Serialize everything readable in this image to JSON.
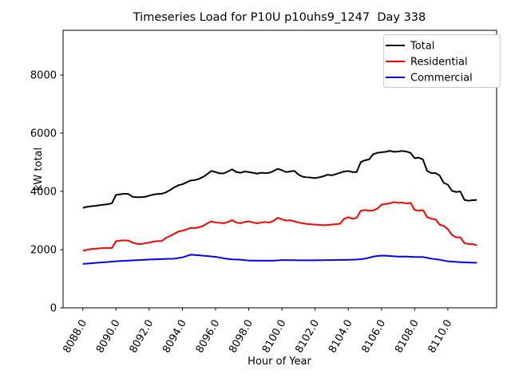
{
  "title": "Timeseries Load for P10U p10uhs9_1247  Day 338",
  "colors": {
    "background": "#ffffff",
    "axes": "#000000",
    "legend_border": "#cccccc",
    "total": "#000000",
    "residential": "#ff0000",
    "commercial": "#0000ff"
  },
  "legend": {
    "position": "upper right",
    "entries": [
      "Total",
      "Residential",
      "Commercial"
    ]
  },
  "chart_data": {
    "type": "line",
    "title": "Timeseries Load for P10U p10uhs9_1247  Day 338",
    "xlabel": "Hour of Year",
    "ylabel": "kW total",
    "xlim": [
      8086.81,
      8112.94
    ],
    "ylim": [
      0,
      9535
    ],
    "x_ticks": [
      8088,
      8090,
      8092,
      8094,
      8096,
      8098,
      8100,
      8102,
      8104,
      8106,
      8108,
      8110
    ],
    "x_tick_rotation": 60,
    "y_ticks": [
      0,
      2000,
      4000,
      6000,
      8000
    ],
    "grid": false,
    "legend_position": "upper right",
    "x": [
      8088.0,
      8088.25,
      8088.5,
      8088.75,
      8089.0,
      8089.25,
      8089.5,
      8089.75,
      8090.0,
      8090.25,
      8090.5,
      8090.75,
      8091.0,
      8091.25,
      8091.5,
      8091.75,
      8092.0,
      8092.25,
      8092.5,
      8092.75,
      8093.0,
      8093.25,
      8093.5,
      8093.75,
      8094.0,
      8094.25,
      8094.5,
      8094.75,
      8095.0,
      8095.25,
      8095.5,
      8095.75,
      8096.0,
      8096.25,
      8096.5,
      8096.75,
      8097.0,
      8097.25,
      8097.5,
      8097.75,
      8098.0,
      8098.25,
      8098.5,
      8098.75,
      8099.0,
      8099.25,
      8099.5,
      8099.75,
      8100.0,
      8100.25,
      8100.5,
      8100.75,
      8101.0,
      8101.25,
      8101.5,
      8101.75,
      8102.0,
      8102.25,
      8102.5,
      8102.75,
      8103.0,
      8103.25,
      8103.5,
      8103.75,
      8104.0,
      8104.25,
      8104.5,
      8104.75,
      8105.0,
      8105.25,
      8105.5,
      8105.75,
      8106.0,
      8106.25,
      8106.5,
      8106.75,
      8107.0,
      8107.25,
      8107.5,
      8107.75,
      8108.0,
      8108.25,
      8108.5,
      8108.75,
      8109.0,
      8109.25,
      8109.5,
      8109.75,
      8110.0,
      8110.25,
      8110.5,
      8110.75,
      8111.0,
      8111.25,
      8111.5,
      8111.75
    ],
    "series": [
      {
        "name": "Total",
        "color": "#000000",
        "values": [
          3435,
          3470,
          3490,
          3505,
          3525,
          3545,
          3560,
          3590,
          3880,
          3900,
          3920,
          3910,
          3815,
          3800,
          3800,
          3815,
          3855,
          3890,
          3910,
          3920,
          3965,
          4045,
          4135,
          4210,
          4245,
          4310,
          4375,
          4390,
          4430,
          4500,
          4595,
          4705,
          4665,
          4620,
          4620,
          4685,
          4760,
          4665,
          4640,
          4685,
          4665,
          4640,
          4610,
          4640,
          4630,
          4640,
          4705,
          4775,
          4730,
          4665,
          4685,
          4705,
          4575,
          4505,
          4485,
          4475,
          4455,
          4485,
          4520,
          4575,
          4550,
          4595,
          4640,
          4685,
          4700,
          4665,
          4665,
          5005,
          5070,
          5100,
          5280,
          5325,
          5345,
          5360,
          5395,
          5360,
          5370,
          5390,
          5370,
          5325,
          5140,
          5160,
          5095,
          4705,
          4630,
          4630,
          4550,
          4295,
          4230,
          4020,
          3980,
          4000,
          3710,
          3680,
          3700,
          3710
        ]
      },
      {
        "name": "Residential",
        "color": "#ff0000",
        "values": [
          1965,
          1990,
          2020,
          2030,
          2045,
          2055,
          2055,
          2055,
          2290,
          2310,
          2320,
          2310,
          2240,
          2200,
          2190,
          2220,
          2240,
          2275,
          2295,
          2295,
          2400,
          2470,
          2540,
          2620,
          2650,
          2695,
          2750,
          2740,
          2770,
          2815,
          2905,
          2970,
          2930,
          2920,
          2905,
          2950,
          3015,
          2930,
          2905,
          2950,
          2970,
          2930,
          2905,
          2930,
          2950,
          2930,
          2995,
          3095,
          3040,
          3000,
          3010,
          2970,
          2930,
          2905,
          2885,
          2870,
          2860,
          2850,
          2840,
          2845,
          2860,
          2875,
          2890,
          3060,
          3115,
          3060,
          3090,
          3335,
          3360,
          3335,
          3345,
          3410,
          3545,
          3570,
          3590,
          3635,
          3605,
          3615,
          3590,
          3605,
          3360,
          3335,
          3360,
          3115,
          3060,
          3040,
          2860,
          2810,
          2700,
          2500,
          2420,
          2420,
          2220,
          2190,
          2190,
          2150
        ]
      },
      {
        "name": "Commercial",
        "color": "#0000ff",
        "values": [
          1510,
          1520,
          1530,
          1545,
          1555,
          1565,
          1575,
          1590,
          1600,
          1608,
          1615,
          1622,
          1630,
          1638,
          1645,
          1652,
          1660,
          1665,
          1670,
          1675,
          1680,
          1685,
          1690,
          1710,
          1735,
          1780,
          1825,
          1815,
          1805,
          1790,
          1780,
          1765,
          1755,
          1725,
          1700,
          1680,
          1665,
          1660,
          1655,
          1640,
          1625,
          1622,
          1620,
          1620,
          1620,
          1620,
          1620,
          1630,
          1640,
          1640,
          1638,
          1636,
          1635,
          1635,
          1635,
          1635,
          1635,
          1636,
          1638,
          1640,
          1642,
          1644,
          1646,
          1648,
          1650,
          1655,
          1660,
          1670,
          1690,
          1720,
          1760,
          1780,
          1795,
          1790,
          1780,
          1770,
          1762,
          1762,
          1762,
          1755,
          1745,
          1745,
          1745,
          1720,
          1690,
          1670,
          1653,
          1625,
          1600,
          1590,
          1580,
          1570,
          1562,
          1558,
          1553,
          1550
        ]
      }
    ]
  }
}
